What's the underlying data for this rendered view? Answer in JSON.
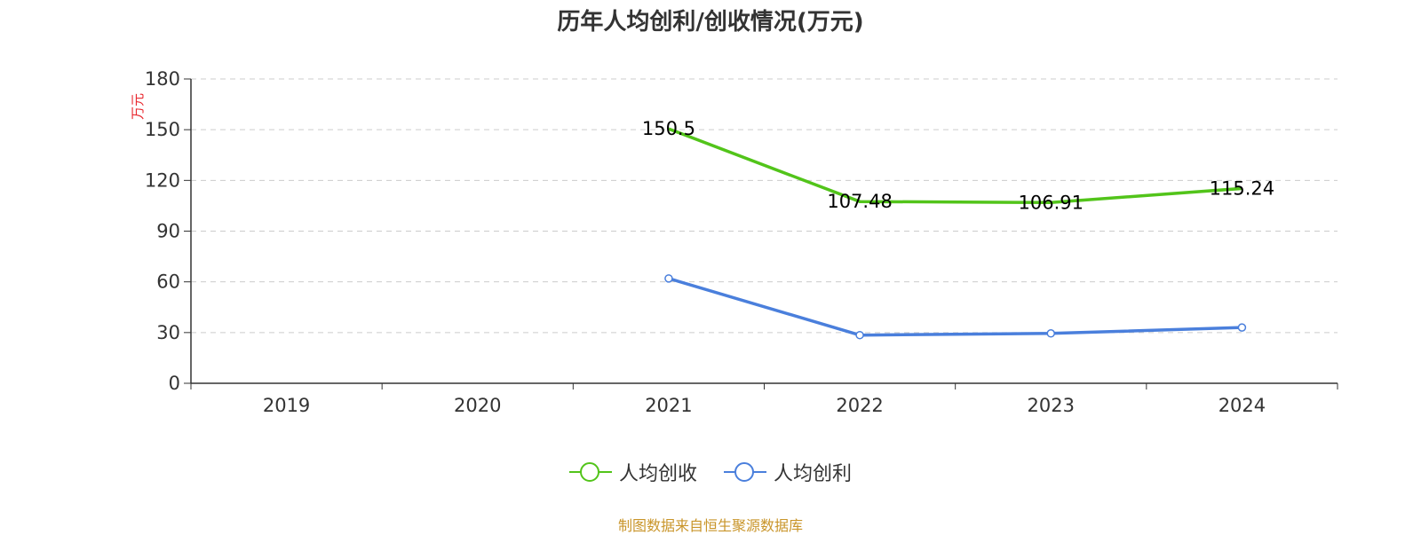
{
  "chart_data": {
    "type": "line",
    "title": "历年人均创利/创收情况(万元)",
    "ylabel": "万元",
    "ylim": [
      0,
      180
    ],
    "yticks": [
      0,
      30,
      60,
      90,
      120,
      150,
      180
    ],
    "categories": [
      "2019",
      "2020",
      "2021",
      "2022",
      "2023",
      "2024"
    ],
    "grid": "dashed horizontal",
    "legend_position": "bottom-center",
    "series": [
      {
        "name": "人均创收",
        "color": "#52c41a",
        "values": [
          null,
          null,
          150.5,
          107.48,
          106.91,
          115.24
        ],
        "labels": [
          "",
          "",
          "150.5",
          "107.48",
          "106.91",
          "115.24"
        ],
        "show_markers": false
      },
      {
        "name": "人均创利",
        "color": "#4a7fdc",
        "values": [
          null,
          null,
          62,
          28.5,
          29.5,
          33
        ],
        "labels": [
          "",
          "",
          "",
          "",
          "",
          ""
        ],
        "show_markers": true
      }
    ]
  },
  "source": "制图数据来自恒生聚源数据库"
}
